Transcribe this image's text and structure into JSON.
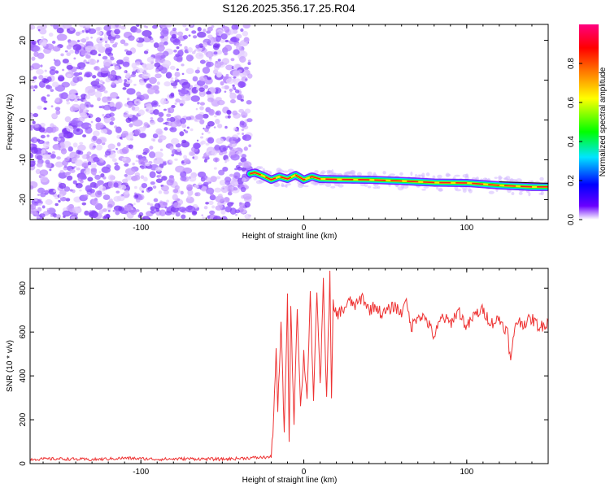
{
  "chart_data": [
    {
      "type": "heatmap",
      "title": "S126.2025.356.17.25.R04",
      "xlabel": "Height of straight line (km)",
      "ylabel": "Frequency (Hz)",
      "xlim": [
        -168,
        150
      ],
      "ylim": [
        -25,
        24
      ],
      "xticks": [
        -100,
        0,
        100
      ],
      "yticks": [
        20,
        10,
        0,
        -10,
        -20
      ],
      "colorbar": {
        "label": "Normalized spectral amplitude",
        "range": [
          0,
          1
        ],
        "ticks": [
          0.0,
          0.2,
          0.4,
          0.6,
          0.8
        ],
        "stops": [
          "#ffffff",
          "#6a00ff",
          "#0000ff",
          "#00e5ff",
          "#00ff00",
          "#ffff00",
          "#ff8000",
          "#ff0000",
          "#ff0080"
        ]
      },
      "noise_region": {
        "x": [
          -168,
          -33
        ],
        "y": [
          -25,
          24
        ],
        "amplitude": [
          0.0,
          0.15
        ]
      },
      "signal_track": {
        "x": [
          -33,
          -30,
          -25,
          -20,
          -15,
          -10,
          -5,
          0,
          5,
          10,
          20,
          40,
          60,
          80,
          100,
          120,
          140,
          150
        ],
        "freq": [
          -13.5,
          -13.2,
          -14.0,
          -15.0,
          -14.2,
          -14.8,
          -13.8,
          -15.0,
          -14.2,
          -14.8,
          -14.9,
          -15.0,
          -15.3,
          -15.7,
          -15.8,
          -16.4,
          -16.8,
          -16.8
        ],
        "peak_amplitude": 0.95
      }
    },
    {
      "type": "line",
      "title": "",
      "xlabel": "Height of straight line (km)",
      "ylabel": "SNR (10 * v/v)",
      "xlim": [
        -168,
        150
      ],
      "ylim": [
        0,
        890
      ],
      "xticks": [
        -100,
        0,
        100
      ],
      "yticks": [
        0,
        200,
        400,
        600,
        800
      ],
      "line_color": "#ee3333",
      "series": [
        {
          "name": "SNR",
          "x": [
            -168,
            -150,
            -130,
            -110,
            -90,
            -70,
            -50,
            -36,
            -20,
            -19,
            -17,
            -16,
            -14,
            -12,
            -10,
            -9,
            -8,
            -6,
            -4,
            -2,
            0,
            2,
            4,
            6,
            8,
            10,
            12,
            14,
            16,
            17,
            18,
            20,
            24,
            28,
            32,
            36,
            40,
            44,
            48,
            52,
            56,
            60,
            62,
            66,
            70,
            75,
            80,
            85,
            90,
            95,
            100,
            105,
            110,
            115,
            120,
            125,
            127,
            130,
            135,
            140,
            145,
            150
          ],
          "y": [
            20,
            22,
            18,
            25,
            20,
            22,
            20,
            25,
            30,
            150,
            500,
            240,
            630,
            150,
            760,
            90,
            700,
            200,
            720,
            250,
            500,
            300,
            780,
            260,
            800,
            350,
            820,
            300,
            860,
            280,
            720,
            680,
            700,
            740,
            720,
            760,
            700,
            720,
            680,
            700,
            720,
            680,
            760,
            620,
            680,
            660,
            580,
            670,
            640,
            700,
            620,
            680,
            700,
            640,
            660,
            600,
            460,
            650,
            640,
            660,
            620,
            650
          ]
        }
      ]
    }
  ]
}
